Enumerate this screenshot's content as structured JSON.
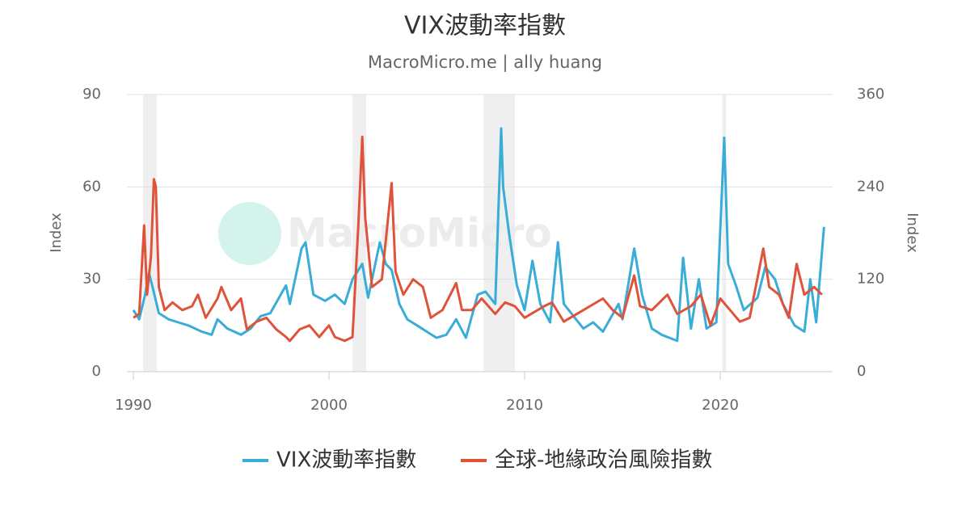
{
  "chart_data": {
    "type": "line",
    "title": "VIX波動率指數",
    "subtitle": "MacroMicro.me | ally huang",
    "watermark": "MacroMicro",
    "y_label": "Index",
    "y2_label": "Index",
    "xlim": [
      1989.67,
      2025.74
    ],
    "xticks": [
      1990,
      2000,
      2010,
      2020
    ],
    "ylim": [
      0,
      90
    ],
    "yticks": [
      0,
      30,
      60,
      90
    ],
    "y2lim": [
      0,
      360
    ],
    "y2ticks": [
      0,
      120,
      240,
      360
    ],
    "grid": true,
    "legend": "bottom",
    "shaded_periods": [
      [
        1990.5,
        1991.2
      ],
      [
        2001.2,
        2001.9
      ],
      [
        2007.9,
        2009.5
      ],
      [
        2020.1,
        2020.3
      ]
    ],
    "series": [
      {
        "name": "VIX波動率指數",
        "color": "#3aacd8",
        "axis": "y",
        "x": [
          1990.0,
          1990.3,
          1990.6,
          1990.8,
          1991.0,
          1991.3,
          1991.8,
          1992.3,
          1992.8,
          1993.5,
          1994.0,
          1994.3,
          1994.8,
          1995.5,
          1996.0,
          1996.5,
          1997.0,
          1997.8,
          1998.0,
          1998.6,
          1998.8,
          1999.2,
          1999.8,
          2000.3,
          2000.8,
          2001.2,
          2001.7,
          2002.0,
          2002.6,
          2002.9,
          2003.2,
          2003.6,
          2004.0,
          2004.5,
          2005.0,
          2005.5,
          2006.0,
          2006.5,
          2007.0,
          2007.6,
          2008.0,
          2008.5,
          2008.8,
          2008.9,
          2009.2,
          2009.6,
          2010.0,
          2010.4,
          2010.8,
          2011.3,
          2011.7,
          2012.0,
          2012.5,
          2013.0,
          2013.5,
          2014.0,
          2014.8,
          2015.0,
          2015.6,
          2016.0,
          2016.5,
          2017.0,
          2017.8,
          2018.1,
          2018.5,
          2018.9,
          2019.3,
          2019.8,
          2020.2,
          2020.4,
          2020.8,
          2021.2,
          2021.9,
          2022.3,
          2022.8,
          2023.2,
          2023.8,
          2024.3,
          2024.6,
          2024.9,
          2025.3
        ],
        "values": [
          20,
          17,
          25,
          32,
          27,
          19,
          17,
          16,
          15,
          13,
          12,
          17,
          14,
          12,
          14,
          18,
          19,
          28,
          22,
          40,
          42,
          25,
          23,
          25,
          22,
          30,
          35,
          24,
          42,
          35,
          33,
          22,
          17,
          15,
          13,
          11,
          12,
          17,
          11,
          25,
          26,
          22,
          79,
          60,
          45,
          28,
          20,
          36,
          22,
          16,
          42,
          22,
          18,
          14,
          16,
          13,
          22,
          17,
          40,
          25,
          14,
          12,
          10,
          37,
          14,
          30,
          14,
          16,
          76,
          35,
          28,
          20,
          24,
          34,
          30,
          22,
          15,
          13,
          30,
          16,
          47
        ]
      },
      {
        "name": "全球-地緣政治風險指數",
        "color": "#e0533b",
        "axis": "y2",
        "x": [
          1990.0,
          1990.3,
          1990.55,
          1990.7,
          1990.9,
          1991.05,
          1991.15,
          1991.3,
          1991.6,
          1992.0,
          1992.5,
          1993.0,
          1993.3,
          1993.7,
          1994.3,
          1994.5,
          1995.0,
          1995.5,
          1995.8,
          1996.3,
          1996.8,
          1997.3,
          1997.8,
          1998.0,
          1998.5,
          1999.0,
          1999.5,
          2000.0,
          2000.3,
          2000.8,
          2001.2,
          2001.5,
          2001.7,
          2001.85,
          2002.2,
          2002.7,
          2003.2,
          2003.4,
          2003.8,
          2004.3,
          2004.8,
          2005.2,
          2005.8,
          2006.5,
          2006.8,
          2007.3,
          2007.8,
          2008.5,
          2009.0,
          2009.5,
          2010.0,
          2011.0,
          2011.4,
          2012.0,
          2013.0,
          2014.0,
          2014.5,
          2015.0,
          2015.6,
          2015.9,
          2016.5,
          2017.3,
          2017.8,
          2018.5,
          2019.0,
          2019.5,
          2020.0,
          2020.5,
          2021.0,
          2021.5,
          2022.2,
          2022.5,
          2023.0,
          2023.5,
          2023.9,
          2024.3,
          2024.8,
          2025.2
        ],
        "values": [
          70,
          75,
          190,
          100,
          150,
          250,
          240,
          110,
          80,
          90,
          80,
          85,
          100,
          70,
          95,
          110,
          80,
          95,
          55,
          65,
          70,
          55,
          45,
          40,
          55,
          60,
          45,
          60,
          45,
          40,
          45,
          190,
          305,
          200,
          110,
          120,
          245,
          130,
          100,
          120,
          110,
          70,
          80,
          115,
          80,
          80,
          95,
          75,
          90,
          85,
          70,
          85,
          90,
          65,
          80,
          95,
          80,
          70,
          125,
          85,
          80,
          100,
          75,
          85,
          100,
          60,
          95,
          80,
          65,
          70,
          160,
          110,
          100,
          70,
          140,
          100,
          110,
          100
        ]
      }
    ]
  }
}
